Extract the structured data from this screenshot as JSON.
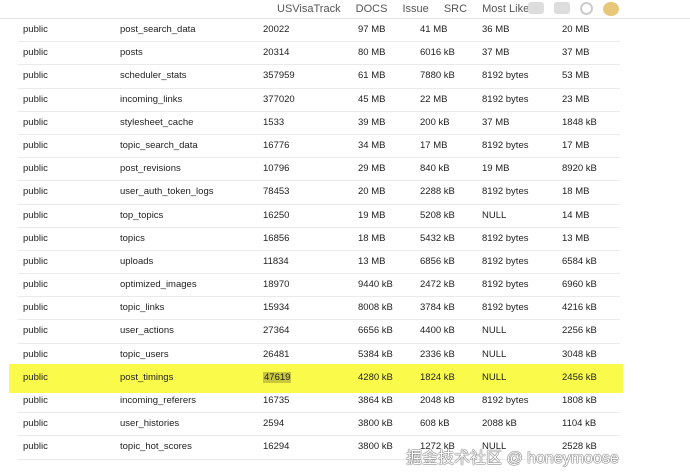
{
  "nav": {
    "items": [
      "USVisaTrack",
      "DOCS",
      "Issue",
      "SRC",
      "Most Liked"
    ]
  },
  "icons": [
    "chat-icon",
    "calendar-icon",
    "search-icon",
    "avatar"
  ],
  "table": {
    "highlight_row": 15,
    "rows": [
      [
        "public",
        "post_search_data",
        "20022",
        "97 MB",
        "41 MB",
        "36 MB",
        "20 MB"
      ],
      [
        "public",
        "posts",
        "20314",
        "80 MB",
        "6016 kB",
        "37 MB",
        "37 MB"
      ],
      [
        "public",
        "scheduler_stats",
        "357959",
        "61 MB",
        "7880 kB",
        "8192 bytes",
        "53 MB"
      ],
      [
        "public",
        "incoming_links",
        "377020",
        "45 MB",
        "22 MB",
        "8192 bytes",
        "23 MB"
      ],
      [
        "public",
        "stylesheet_cache",
        "1533",
        "39 MB",
        "200 kB",
        "37 MB",
        "1848 kB"
      ],
      [
        "public",
        "topic_search_data",
        "16776",
        "34 MB",
        "17 MB",
        "8192 bytes",
        "17 MB"
      ],
      [
        "public",
        "post_revisions",
        "10796",
        "29 MB",
        "840 kB",
        "19 MB",
        "8920 kB"
      ],
      [
        "public",
        "user_auth_token_logs",
        "78453",
        "20 MB",
        "2288 kB",
        "8192 bytes",
        "18 MB"
      ],
      [
        "public",
        "top_topics",
        "16250",
        "19 MB",
        "5208 kB",
        "NULL",
        "14 MB"
      ],
      [
        "public",
        "topics",
        "16856",
        "18 MB",
        "5432 kB",
        "8192 bytes",
        "13 MB"
      ],
      [
        "public",
        "uploads",
        "11834",
        "13 MB",
        "6856 kB",
        "8192 bytes",
        "6584 kB"
      ],
      [
        "public",
        "optimized_images",
        "18970",
        "9440 kB",
        "2472 kB",
        "8192 bytes",
        "6960 kB"
      ],
      [
        "public",
        "topic_links",
        "15934",
        "8008 kB",
        "3784 kB",
        "8192 bytes",
        "4216 kB"
      ],
      [
        "public",
        "user_actions",
        "27364",
        "6656 kB",
        "4400 kB",
        "NULL",
        "2256 kB"
      ],
      [
        "public",
        "topic_users",
        "26481",
        "5384 kB",
        "2336 kB",
        "NULL",
        "3048 kB"
      ],
      [
        "public",
        "post_timings",
        "47619",
        "4280 kB",
        "1824 kB",
        "NULL",
        "2456 kB"
      ],
      [
        "public",
        "incoming_referers",
        "16735",
        "3864 kB",
        "2048 kB",
        "8192 bytes",
        "1808 kB"
      ],
      [
        "public",
        "user_histories",
        "2594",
        "3800 kB",
        "608 kB",
        "2088 kB",
        "1104 kB"
      ],
      [
        "public",
        "topic_hot_scores",
        "16294",
        "3800 kB",
        "1272 kB",
        "NULL",
        "2528 kB"
      ]
    ]
  },
  "watermark": "掘金技术社区 @ honeymoose"
}
